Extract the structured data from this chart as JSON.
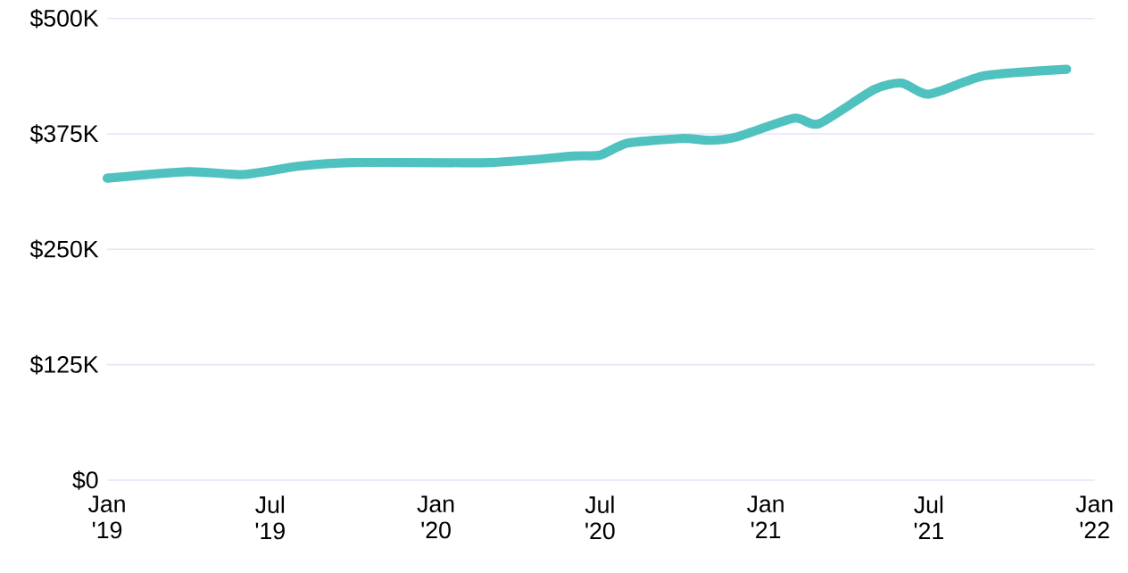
{
  "chart_data": {
    "type": "line",
    "x": [
      "2019-01",
      "2019-04",
      "2019-06",
      "2019-08",
      "2019-10",
      "2020-03",
      "2020-06",
      "2020-07",
      "2020-08",
      "2020-10",
      "2020-11",
      "2020-12",
      "2021-02",
      "2021-03",
      "2021-05",
      "2021-06",
      "2021-07",
      "2021-09",
      "2021-12"
    ],
    "series": [
      {
        "color": "#4fc1bf",
        "values": [
          327000,
          334000,
          331000,
          340000,
          344000,
          344000,
          351000,
          352000,
          365000,
          370000,
          368000,
          372000,
          392000,
          386000,
          423000,
          430000,
          418000,
          438000,
          445000
        ]
      }
    ],
    "xlim": [
      "2019-01",
      "2022-01"
    ],
    "xticks": [
      {
        "value": "2019-01",
        "label": "Jan '19"
      },
      {
        "value": "2019-07",
        "label": "Jul '19"
      },
      {
        "value": "2020-01",
        "label": "Jan '20"
      },
      {
        "value": "2020-07",
        "label": "Jul '20"
      },
      {
        "value": "2021-01",
        "label": "Jan '21"
      },
      {
        "value": "2021-07",
        "label": "Jul '21"
      },
      {
        "value": "2022-01",
        "label": "Jan '22"
      }
    ],
    "ylim": [
      0,
      500000
    ],
    "yticks": [
      {
        "value": 0,
        "label": "$0"
      },
      {
        "value": 125000,
        "label": "$125K"
      },
      {
        "value": 250000,
        "label": "$250K"
      },
      {
        "value": 375000,
        "label": "$375K"
      },
      {
        "value": 500000,
        "label": "$500K"
      }
    ],
    "grid": "y",
    "marker": "none",
    "line_style": "solid"
  }
}
